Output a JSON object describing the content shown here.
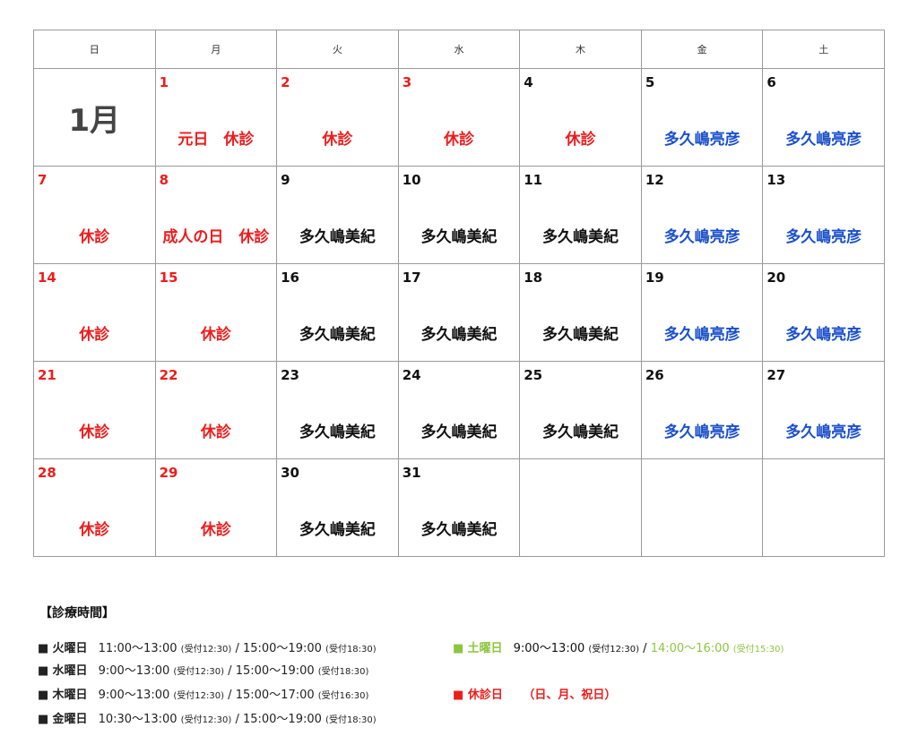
{
  "calendar": {
    "weekdays": [
      "日",
      "月",
      "火",
      "水",
      "木",
      "金",
      "土"
    ],
    "month_label": "1月",
    "weeks": [
      [
        {
          "type": "month"
        },
        {
          "day": "1",
          "note": "元日　休診",
          "style": "holiday"
        },
        {
          "day": "2",
          "note": "休診",
          "style": "holiday"
        },
        {
          "day": "3",
          "note": "休診",
          "style": "holiday"
        },
        {
          "day": "4",
          "note": "休診",
          "style": "holiday-blacknum"
        },
        {
          "day": "5",
          "note": "多久嶋亮彦",
          "style": "fri"
        },
        {
          "day": "6",
          "note": "多久嶋亮彦",
          "style": "sat"
        }
      ],
      [
        {
          "day": "7",
          "note": "休診",
          "style": "holiday"
        },
        {
          "day": "8",
          "note": "成人の日　休診",
          "style": "holiday"
        },
        {
          "day": "9",
          "note": "多久嶋美紀",
          "style": "normal"
        },
        {
          "day": "10",
          "note": "多久嶋美紀",
          "style": "normal"
        },
        {
          "day": "11",
          "note": "多久嶋美紀",
          "style": "normal"
        },
        {
          "day": "12",
          "note": "多久嶋亮彦",
          "style": "fri"
        },
        {
          "day": "13",
          "note": "多久嶋亮彦",
          "style": "sat"
        }
      ],
      [
        {
          "day": "14",
          "note": "休診",
          "style": "holiday"
        },
        {
          "day": "15",
          "note": "休診",
          "style": "holiday"
        },
        {
          "day": "16",
          "note": "多久嶋美紀",
          "style": "normal"
        },
        {
          "day": "17",
          "note": "多久嶋美紀",
          "style": "normal"
        },
        {
          "day": "18",
          "note": "多久嶋美紀",
          "style": "normal"
        },
        {
          "day": "19",
          "note": "多久嶋亮彦",
          "style": "fri"
        },
        {
          "day": "20",
          "note": "多久嶋亮彦",
          "style": "sat"
        }
      ],
      [
        {
          "day": "21",
          "note": "休診",
          "style": "holiday"
        },
        {
          "day": "22",
          "note": "休診",
          "style": "holiday"
        },
        {
          "day": "23",
          "note": "多久嶋美紀",
          "style": "normal"
        },
        {
          "day": "24",
          "note": "多久嶋美紀",
          "style": "normal"
        },
        {
          "day": "25",
          "note": "多久嶋美紀",
          "style": "normal"
        },
        {
          "day": "26",
          "note": "多久嶋亮彦",
          "style": "fri"
        },
        {
          "day": "27",
          "note": "多久嶋亮彦",
          "style": "sat"
        }
      ],
      [
        {
          "day": "28",
          "note": "休診",
          "style": "holiday"
        },
        {
          "day": "29",
          "note": "休診",
          "style": "holiday"
        },
        {
          "day": "30",
          "note": "多久嶋美紀",
          "style": "normal"
        },
        {
          "day": "31",
          "note": "多久嶋美紀",
          "style": "normal"
        },
        {
          "type": "empty"
        },
        {
          "type": "empty"
        },
        {
          "type": "empty"
        }
      ]
    ]
  },
  "hours": {
    "title": "【診療時間】",
    "tue": {
      "marker": "■",
      "day": "火曜日",
      "slot1": "11:00～13:00",
      "rec1": "(受付12:30)",
      "sep": "/",
      "slot2": "15:00～19:00",
      "rec2": "(受付18:30)"
    },
    "wed": {
      "marker": "■",
      "day": "水曜日",
      "slot1": "9:00～13:00",
      "rec1": "(受付12:30)",
      "sep": "/",
      "slot2": "15:00～19:00",
      "rec2": "(受付18:30)"
    },
    "thu": {
      "marker": "■",
      "day": "木曜日",
      "slot1": "9:00～13:00",
      "rec1": "(受付12:30)",
      "sep": "/",
      "slot2": "15:00～17:00",
      "rec2": "(受付16:30)"
    },
    "fri": {
      "marker": "■",
      "day": "金曜日",
      "slot1": "10:30～13:00",
      "rec1": "(受付12:30)",
      "sep": "/",
      "slot2": "15:00～19:00",
      "rec2": "(受付18:30)"
    },
    "sat": {
      "marker": "■",
      "day": "土曜日",
      "slot1": "9:00～13:00",
      "rec1": "(受付12:30)",
      "sep": "/",
      "slot2": "14:00～16:00",
      "rec2": "(受付15:30)"
    },
    "closed": {
      "marker": "■",
      "day": "休診日",
      "days": "（日、月、祝日）"
    }
  },
  "colors": {
    "holiday_bg": "#f9c9b6",
    "saturday_bg": "#d8f5b7",
    "red_text": "#ee1c1c",
    "blue_text": "#1a4fcc",
    "green_text": "#8cc63f"
  }
}
